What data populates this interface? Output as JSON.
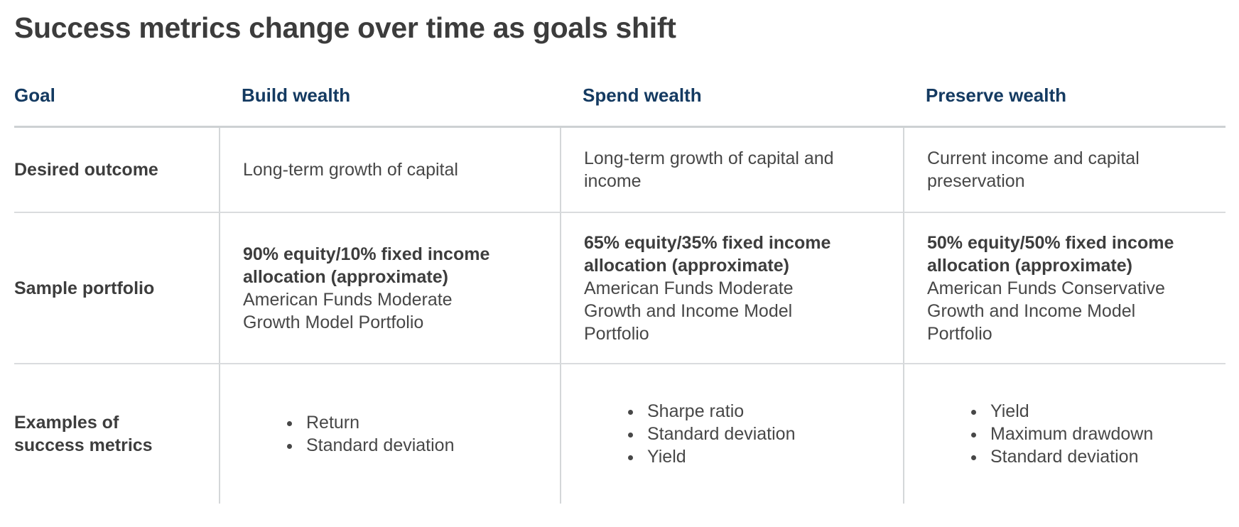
{
  "page": {
    "title": "Success metrics change over time as goals shift"
  },
  "colors": {
    "header_navy": "#143a61",
    "title_charcoal": "#3c3c3c",
    "body_text": "#474747",
    "header_rule": "#cdd1d3",
    "row_separator": "#dadcde",
    "column_divider": "#d4d7d9"
  },
  "table": {
    "columns": [
      {
        "label": "Goal"
      },
      {
        "label": "Build wealth"
      },
      {
        "label": "Spend wealth"
      },
      {
        "label": "Preserve wealth"
      }
    ],
    "rows": [
      {
        "label": "Desired outcome",
        "cells": [
          {
            "text": "Long-term growth of capital"
          },
          {
            "text": "Long-term growth of capital and income"
          },
          {
            "text": "Current income and capital preservation"
          }
        ]
      },
      {
        "label": "Sample portfolio",
        "cells": [
          {
            "bold": "90% equity/10% fixed income allocation (approximate)",
            "text": "American Funds Moderate Growth Model Portfolio"
          },
          {
            "bold": "65% equity/35% fixed income allocation (approximate)",
            "text": "American Funds Moderate Growth and Income Model Portfolio"
          },
          {
            "bold": "50% equity/50% fixed income allocation (approximate)",
            "text": "American Funds Conservative Growth and Income Model Portfolio"
          }
        ]
      },
      {
        "label": "Examples of success metrics",
        "cells": [
          {
            "bullets": [
              "Return",
              "Standard deviation"
            ]
          },
          {
            "bullets": [
              "Sharpe ratio",
              "Standard deviation",
              "Yield"
            ]
          },
          {
            "bullets": [
              "Yield",
              "Maximum drawdown",
              "Standard deviation"
            ]
          }
        ]
      }
    ]
  }
}
